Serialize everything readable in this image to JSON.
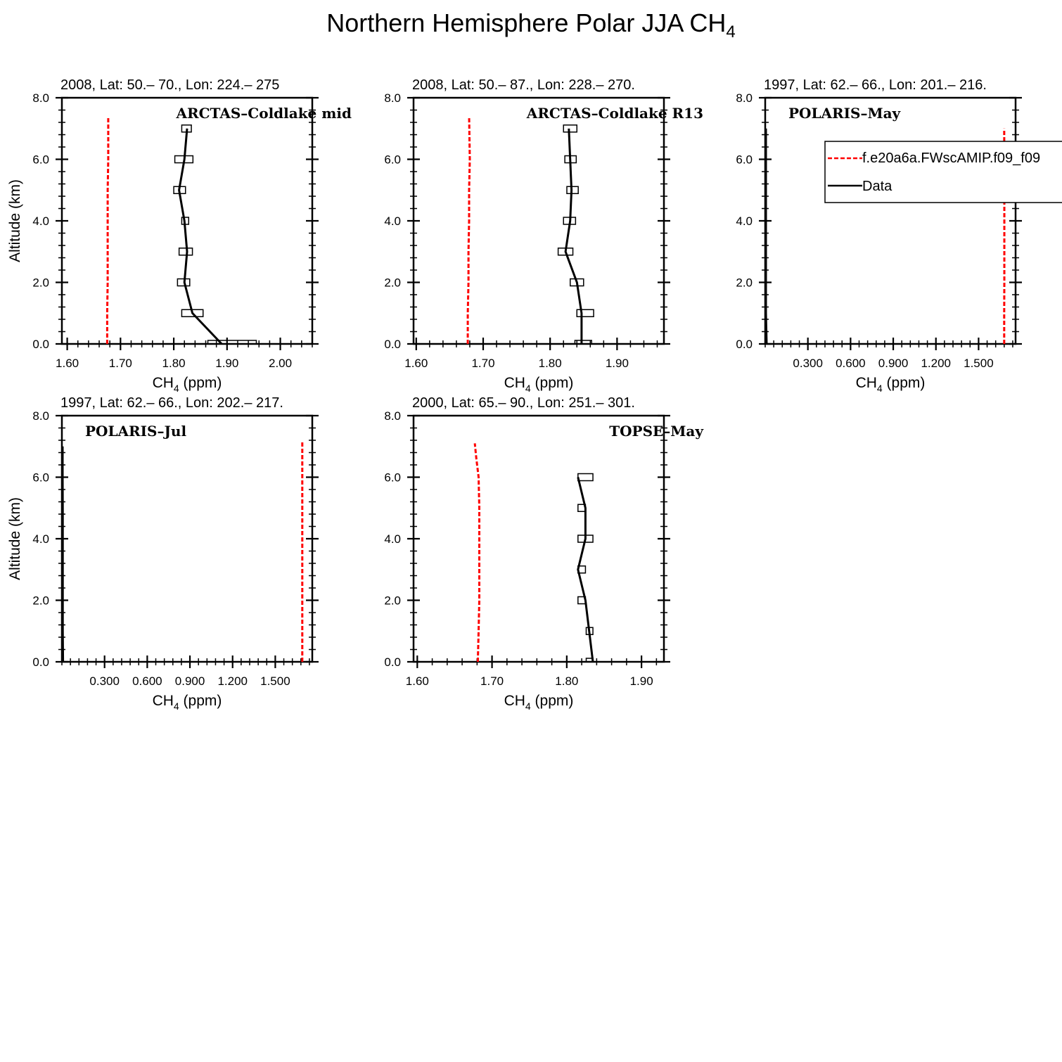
{
  "figure": {
    "title_main": "Northern Hemisphere Polar JJA CH",
    "title_sub": "4"
  },
  "legend": {
    "model_label": "f.e20a6a.FWscAMIP.f09_f09",
    "data_label": "Data",
    "model_color": "#ff0000",
    "data_color": "#000000"
  },
  "chart_data": [
    {
      "type": "line",
      "panel_title": "2008, Lat:  50.– 70., Lon: 224.– 275",
      "campaign": "ARCTAS–Coldlake mid",
      "xlabel": "CH",
      "xlabel_sub": "4",
      "xlabel_unit": " (ppm)",
      "ylabel": "Altitude (km)",
      "xlim": [
        1.59,
        2.06
      ],
      "ylim": [
        0,
        8
      ],
      "xticks": [
        1.6,
        1.7,
        1.8,
        1.9,
        2.0
      ],
      "xtick_labels": [
        "1.60",
        "1.70",
        "1.80",
        "1.90",
        "2.00"
      ],
      "yticks": [
        0,
        2,
        4,
        6,
        8
      ],
      "ytick_labels": [
        "0.0",
        "2.0",
        "4.0",
        "6.0",
        "8.0"
      ],
      "series": [
        {
          "name": "f.e20a6a.FWscAMIP.f09_f09",
          "style": "dashed",
          "x": [
            1.675,
            1.675,
            1.676,
            1.676,
            1.676,
            1.676,
            1.677,
            1.677
          ],
          "y": [
            0,
            1,
            2,
            3,
            4,
            5,
            6,
            7.4
          ]
        },
        {
          "name": "Data",
          "style": "solid",
          "x": [
            1.89,
            1.835,
            1.82,
            1.825,
            1.82,
            1.81,
            1.82,
            1.825
          ],
          "y": [
            0,
            1,
            2,
            3,
            4,
            5,
            6,
            7
          ]
        },
        {
          "name": "Data range",
          "style": "box",
          "x_low": [
            1.864,
            1.815,
            1.807,
            1.81,
            1.815,
            1.8,
            1.802,
            1.815
          ],
          "x_high": [
            1.955,
            1.855,
            1.83,
            1.835,
            1.828,
            1.822,
            1.836,
            1.833
          ],
          "y": [
            0,
            1,
            2,
            3,
            4,
            5,
            6,
            7
          ]
        }
      ]
    },
    {
      "type": "line",
      "panel_title": "2008, Lat:  50.– 87., Lon: 228.– 270.",
      "campaign": "ARCTAS–Coldlake R13",
      "xlabel": "CH",
      "xlabel_sub": "4",
      "xlabel_unit": " (ppm)",
      "ylabel": "",
      "xlim": [
        1.596,
        1.97
      ],
      "ylim": [
        0,
        8
      ],
      "xticks": [
        1.6,
        1.7,
        1.8,
        1.9
      ],
      "xtick_labels": [
        "1.60",
        "1.70",
        "1.80",
        "1.90"
      ],
      "yticks": [
        0,
        2,
        4,
        6,
        8
      ],
      "ytick_labels": [
        "0.0",
        "2.0",
        "4.0",
        "6.0",
        "8.0"
      ],
      "series": [
        {
          "name": "f.e20a6a.FWscAMIP.f09_f09",
          "style": "dashed",
          "x": [
            1.677,
            1.677,
            1.678,
            1.678,
            1.679,
            1.679,
            1.68,
            1.679
          ],
          "y": [
            0,
            1,
            2,
            3,
            4,
            5,
            6,
            7.4
          ]
        },
        {
          "name": "Data",
          "style": "solid",
          "x": [
            1.847,
            1.847,
            1.84,
            1.823,
            1.83,
            1.832,
            1.83,
            1.828
          ],
          "y": [
            0,
            1,
            2,
            3,
            4,
            5,
            6,
            7
          ]
        },
        {
          "name": "Data range",
          "style": "box",
          "x_low": [
            1.837,
            1.84,
            1.83,
            1.812,
            1.82,
            1.825,
            1.822,
            1.82
          ],
          "x_high": [
            1.862,
            1.865,
            1.85,
            1.834,
            1.838,
            1.842,
            1.839,
            1.84
          ],
          "y": [
            0,
            1,
            2,
            3,
            4,
            5,
            6,
            7
          ]
        }
      ]
    },
    {
      "type": "line",
      "panel_title": "1997, Lat: 62.– 66., Lon: 201.– 216.",
      "campaign": "POLARIS–May",
      "xlabel": "CH",
      "xlabel_sub": "4",
      "xlabel_unit": " (ppm)",
      "ylabel": "",
      "xlim": [
        0.0,
        1.76
      ],
      "ylim": [
        0,
        8
      ],
      "xticks": [
        0.3,
        0.6,
        0.9,
        1.2,
        1.5
      ],
      "xtick_labels": [
        "0.300",
        "0.600",
        "0.900",
        "1.200",
        "1.500"
      ],
      "yticks": [
        0,
        2,
        4,
        6,
        8
      ],
      "ytick_labels": [
        "0.0",
        "2.0",
        "4.0",
        "6.0",
        "8.0"
      ],
      "show_legend": true,
      "series": [
        {
          "name": "f.e20a6a.FWscAMIP.f09_f09",
          "style": "dashed",
          "x": [
            1.68,
            1.68,
            1.681,
            1.681,
            1.681,
            1.681,
            1.681,
            1.68
          ],
          "y": [
            0,
            1,
            2,
            3,
            4,
            5,
            6,
            7.0
          ]
        },
        {
          "name": "Data",
          "style": "solid",
          "x": [
            0.01,
            0.005,
            0.005,
            0.005,
            0.005,
            0.005,
            0.005,
            0.005
          ],
          "y": [
            0,
            1,
            2,
            3,
            4,
            5,
            6,
            7
          ]
        }
      ]
    },
    {
      "type": "line",
      "panel_title": "1997, Lat: 62.– 66., Lon: 202.– 217.",
      "campaign": "POLARIS–Jul",
      "xlabel": "CH",
      "xlabel_sub": "4",
      "xlabel_unit": " (ppm)",
      "ylabel": "Altitude (km)",
      "xlim": [
        0.0,
        1.76
      ],
      "ylim": [
        0,
        8
      ],
      "xticks": [
        0.3,
        0.6,
        0.9,
        1.2,
        1.5
      ],
      "xtick_labels": [
        "0.300",
        "0.600",
        "0.900",
        "1.200",
        "1.500"
      ],
      "yticks": [
        0,
        2,
        4,
        6,
        8
      ],
      "ytick_labels": [
        "0.0",
        "2.0",
        "4.0",
        "6.0",
        "8.0"
      ],
      "series": [
        {
          "name": "f.e20a6a.FWscAMIP.f09_f09",
          "style": "dashed",
          "x": [
            1.69,
            1.69,
            1.69,
            1.69,
            1.69,
            1.69,
            1.69,
            1.69
          ],
          "y": [
            0,
            1,
            2,
            3,
            4,
            5,
            6,
            7.2
          ]
        },
        {
          "name": "Data",
          "style": "solid",
          "x": [
            0.008,
            0.006,
            0.006,
            0.006,
            0.006,
            0.006,
            0.005,
            0.005
          ],
          "y": [
            0,
            1,
            2,
            3,
            4,
            5,
            6,
            7
          ]
        }
      ]
    },
    {
      "type": "line",
      "panel_title": "2000, Lat: 65.– 90., Lon: 251.– 301.",
      "campaign": "TOPSE–May",
      "xlabel": "CH",
      "xlabel_sub": "4",
      "xlabel_unit": " (ppm)",
      "ylabel": "",
      "xlim": [
        1.595,
        1.93
      ],
      "ylim": [
        0,
        8
      ],
      "xticks": [
        1.6,
        1.7,
        1.8,
        1.9
      ],
      "xtick_labels": [
        "1.60",
        "1.70",
        "1.80",
        "1.90"
      ],
      "yticks": [
        0,
        2,
        4,
        6,
        8
      ],
      "ytick_labels": [
        "0.0",
        "2.0",
        "4.0",
        "6.0",
        "8.0"
      ],
      "series": [
        {
          "name": "f.e20a6a.FWscAMIP.f09_f09",
          "style": "dashed",
          "x": [
            1.681,
            1.682,
            1.683,
            1.683,
            1.683,
            1.683,
            1.682,
            1.679,
            1.677
          ],
          "y": [
            0,
            1,
            2,
            3,
            4,
            5,
            6,
            6.6,
            7.1
          ]
        },
        {
          "name": "Data",
          "style": "solid",
          "x": [
            1.835,
            1.83,
            1.825,
            1.815,
            1.825,
            1.825,
            1.815
          ],
          "y": [
            0,
            1,
            2,
            3,
            4,
            5,
            6
          ]
        },
        {
          "name": "Data range",
          "style": "box",
          "x_low": [
            1.826,
            1.826,
            1.815,
            1.815,
            1.815,
            1.815,
            1.815
          ],
          "x_high": [
            1.835,
            1.835,
            1.825,
            1.825,
            1.835,
            1.825,
            1.835
          ],
          "y": [
            0,
            1,
            2,
            3,
            4,
            5,
            6
          ]
        }
      ]
    }
  ]
}
